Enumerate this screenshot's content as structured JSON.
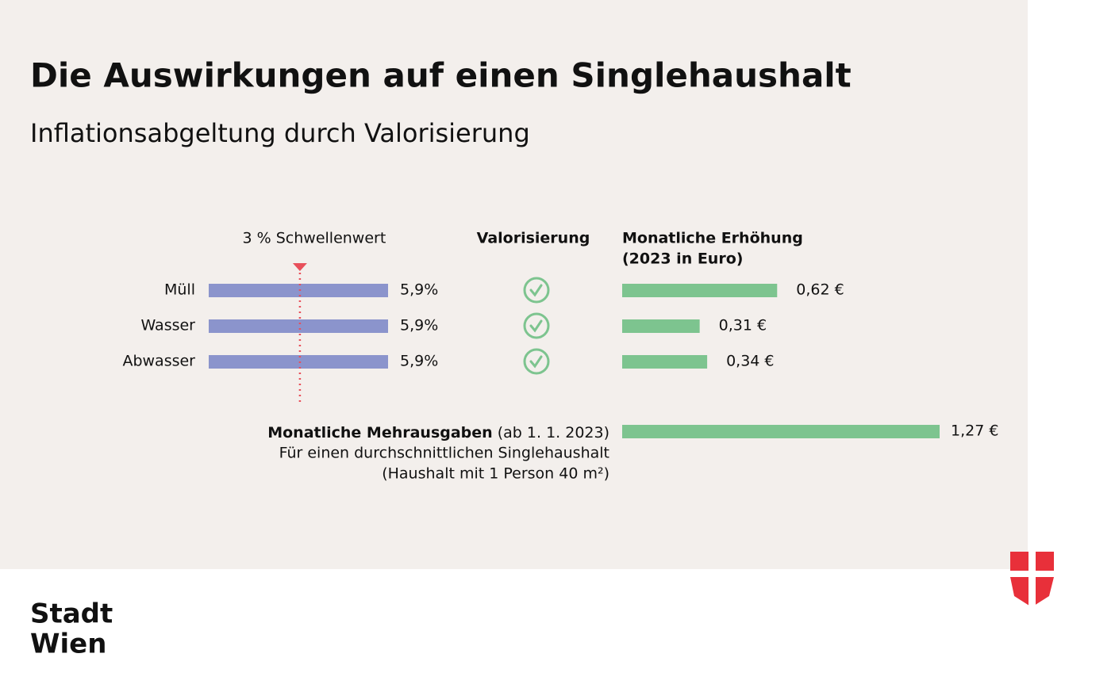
{
  "header": {
    "title": "Die Auswirkungen auf einen Singlehaushalt",
    "subtitle": "Inflationsabgeltung durch Valorisierung"
  },
  "chart_data": [
    {
      "type": "bar",
      "categories": [
        "Müll",
        "Wasser",
        "Abwasser"
      ],
      "values": [
        5.9,
        5.9,
        5.9
      ],
      "value_labels": [
        "5,9%",
        "5,9%",
        "5,9%"
      ],
      "color": "#8b94cc",
      "threshold": {
        "value": 3,
        "label": "3 % Schwellenwert",
        "color": "#e8505b"
      }
    },
    {
      "type": "check",
      "title": "Valorisierung",
      "color": "#7dc48f"
    },
    {
      "type": "bar",
      "title": [
        "Monatliche Erhöhung",
        "(2023 in Euro)"
      ],
      "values": [
        0.62,
        0.31,
        0.34
      ],
      "value_labels": [
        "0,62 €",
        "0,31 €",
        "0,34 €"
      ],
      "color": "#7dc48f",
      "total": {
        "label_bold": "Monatliche Mehrausgaben",
        "label_rest": " (ab 1. 1. 2023)",
        "lines": [
          "Für einen durchschnittlichen Singlehaushalt",
          "(Haushalt mit 1 Person 40 m²)"
        ],
        "value": 1.27,
        "value_label": "1,27 €"
      }
    }
  ],
  "footer": {
    "logo_text": [
      "Stadt",
      "Wien"
    ]
  }
}
